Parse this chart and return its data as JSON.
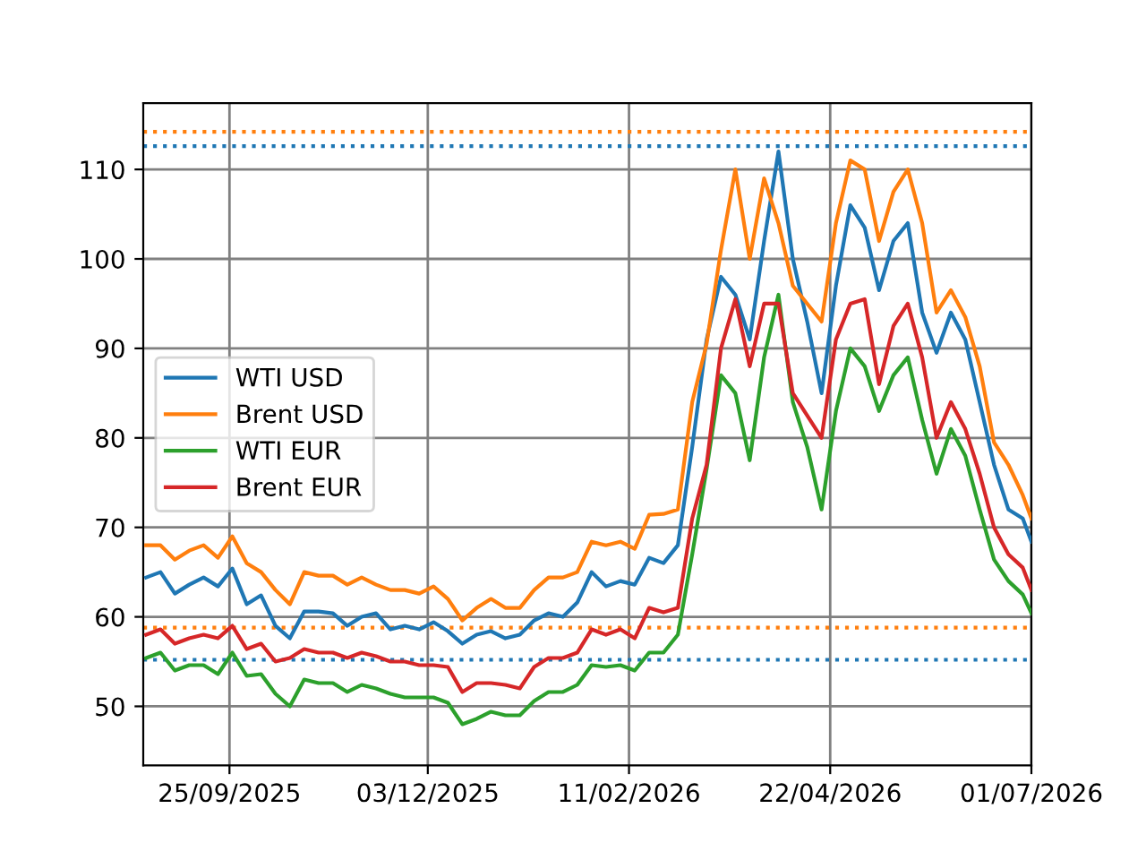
{
  "chart_data": {
    "type": "line",
    "x": [
      "2025-08-27",
      "2025-09-01",
      "2025-09-06",
      "2025-09-11",
      "2025-09-16",
      "2025-09-21",
      "2025-09-26",
      "2025-10-01",
      "2025-10-06",
      "2025-10-11",
      "2025-10-16",
      "2025-10-21",
      "2025-10-26",
      "2025-10-31",
      "2025-11-05",
      "2025-11-10",
      "2025-11-15",
      "2025-11-20",
      "2025-11-25",
      "2025-11-30",
      "2025-12-05",
      "2025-12-10",
      "2025-12-15",
      "2025-12-20",
      "2025-12-25",
      "2025-12-30",
      "2026-01-04",
      "2026-01-09",
      "2026-01-14",
      "2026-01-19",
      "2026-01-24",
      "2026-01-29",
      "2026-02-03",
      "2026-02-08",
      "2026-02-13",
      "2026-02-18",
      "2026-02-23",
      "2026-02-28",
      "2026-03-05",
      "2026-03-10",
      "2026-03-15",
      "2026-03-20",
      "2026-03-25",
      "2026-03-30",
      "2026-04-04",
      "2026-04-09",
      "2026-04-14",
      "2026-04-19",
      "2026-04-24",
      "2026-04-29",
      "2026-05-04",
      "2026-05-09",
      "2026-05-14",
      "2026-05-19",
      "2026-05-24",
      "2026-05-29",
      "2026-06-03",
      "2026-06-08",
      "2026-06-13",
      "2026-06-18",
      "2026-06-23",
      "2026-06-28",
      "2026-07-01"
    ],
    "series": [
      {
        "name": "WTI USD",
        "color": "#1f77b4",
        "values": [
          64.4,
          65,
          62.6,
          63.6,
          64.4,
          63.4,
          65.4,
          61.4,
          62.4,
          59,
          57.6,
          60.6,
          60.6,
          60.4,
          59,
          60,
          60.4,
          58.6,
          59,
          58.6,
          59.4,
          58.4,
          57,
          58,
          58.4,
          57.6,
          58,
          59.6,
          60.4,
          60,
          61.6,
          65,
          63.4,
          64,
          63.6,
          66.6,
          66,
          68,
          79,
          91,
          98,
          96,
          91,
          102,
          112,
          100,
          93,
          85,
          97,
          106,
          103.5,
          96.5,
          102,
          104,
          94,
          89.5,
          94,
          91,
          84,
          77,
          72,
          71,
          68.4
        ]
      },
      {
        "name": "Brent USD",
        "color": "#ff7f0e",
        "values": [
          68,
          68,
          66.4,
          67.4,
          68,
          66.6,
          69,
          66,
          65,
          63,
          61.4,
          65,
          64.6,
          64.6,
          63.6,
          64.4,
          63.6,
          63,
          63,
          62.6,
          63.4,
          62,
          59.6,
          61,
          62,
          61,
          61,
          63,
          64.4,
          64.4,
          65,
          68.4,
          68,
          68.4,
          67.6,
          71.4,
          71.5,
          72,
          84,
          90.5,
          101,
          110,
          100,
          109,
          104,
          97,
          95,
          93,
          104,
          111,
          110,
          102,
          107.5,
          110,
          104,
          94,
          96.5,
          93.5,
          88,
          79.5,
          77,
          73.6,
          71
        ]
      },
      {
        "name": "WTI EUR",
        "color": "#2ca02c",
        "values": [
          55.4,
          56,
          54,
          54.6,
          54.6,
          53.6,
          56,
          53.4,
          53.6,
          51.4,
          50,
          53,
          52.6,
          52.6,
          51.6,
          52.4,
          52,
          51.4,
          51,
          51,
          51,
          50.4,
          48,
          48.6,
          49.4,
          49,
          49,
          50.6,
          51.6,
          51.6,
          52.4,
          54.6,
          54.4,
          54.6,
          54,
          56,
          56,
          58,
          67,
          76.5,
          87,
          85,
          77.5,
          89,
          96,
          84,
          79,
          72,
          83,
          90,
          88,
          83,
          87,
          89,
          82,
          76,
          81,
          78,
          72,
          66.4,
          64,
          62.5,
          60.4
        ]
      },
      {
        "name": "Brent EUR",
        "color": "#d62728",
        "values": [
          58,
          58.6,
          57,
          57.6,
          58,
          57.6,
          59,
          56.4,
          57,
          55,
          55.4,
          56.4,
          56,
          56,
          55.4,
          56,
          55.6,
          55,
          55,
          54.6,
          54.6,
          54.4,
          51.6,
          52.6,
          52.6,
          52.4,
          52,
          54.4,
          55.4,
          55.4,
          56,
          58.6,
          58,
          58.6,
          57.6,
          61,
          60.5,
          61,
          71,
          77,
          90,
          95.5,
          88,
          95,
          95,
          85,
          82.5,
          80,
          91,
          95,
          95.5,
          86,
          92.5,
          95,
          89,
          80,
          84,
          81,
          76,
          70,
          67,
          65.5,
          63
        ]
      }
    ],
    "xlim": [
      "2025-08-26",
      "2026-07-01"
    ],
    "xticks": [
      {
        "value": "2025-09-25",
        "label": "25/09/2025"
      },
      {
        "value": "2025-12-03",
        "label": "03/12/2025"
      },
      {
        "value": "2026-02-11",
        "label": "11/02/2026"
      },
      {
        "value": "2026-04-22",
        "label": "22/04/2026"
      },
      {
        "value": "2026-07-01",
        "label": "01/07/2026"
      }
    ],
    "ylim": [
      43.4,
      117.4
    ],
    "yticks": [
      50,
      60,
      70,
      80,
      90,
      100,
      110
    ],
    "ref_lines": [
      {
        "axis": "y",
        "value": 114.2,
        "color": "#ff7f0e",
        "line_style": "dotted"
      },
      {
        "axis": "y",
        "value": 112.6,
        "color": "#1f77b4",
        "line_style": "dotted"
      },
      {
        "axis": "y",
        "value": 58.8,
        "color": "#ff7f0e",
        "line_style": "dotted"
      },
      {
        "axis": "y",
        "value": 55.2,
        "color": "#1f77b4",
        "line_style": "dotted"
      }
    ],
    "grid": true,
    "legend": "center left",
    "marker": "none",
    "line_style": "solid"
  }
}
